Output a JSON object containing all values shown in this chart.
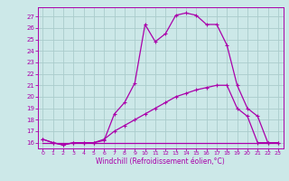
{
  "xlabel": "Windchill (Refroidissement éolien,°C)",
  "bg_color": "#cce8e8",
  "grid_color": "#aacccc",
  "line_color": "#aa00aa",
  "xlim": [
    -0.5,
    23.5
  ],
  "ylim": [
    15.5,
    27.8
  ],
  "yticks": [
    16,
    17,
    18,
    19,
    20,
    21,
    22,
    23,
    24,
    25,
    26,
    27
  ],
  "xticks": [
    0,
    1,
    2,
    3,
    4,
    5,
    6,
    7,
    8,
    9,
    10,
    11,
    12,
    13,
    14,
    15,
    16,
    17,
    18,
    19,
    20,
    21,
    22,
    23
  ],
  "line1_x": [
    0,
    1,
    2,
    3,
    4,
    5,
    6,
    7,
    8,
    9,
    10,
    11,
    12,
    13,
    14,
    15,
    16,
    17,
    18,
    19,
    20,
    21,
    22,
    23
  ],
  "line1_y": [
    16.3,
    16.0,
    15.8,
    16.0,
    16.0,
    16.0,
    16.2,
    18.5,
    19.5,
    21.2,
    26.3,
    24.8,
    25.5,
    27.1,
    27.3,
    27.1,
    26.3,
    26.3,
    24.5,
    21.0,
    19.0,
    18.3,
    16.0,
    16.0
  ],
  "line2_x": [
    0,
    1,
    2,
    3,
    4,
    5,
    6,
    7,
    8,
    9,
    10,
    11,
    12,
    13,
    14,
    15,
    16,
    17,
    18,
    19,
    20,
    21,
    22,
    23
  ],
  "line2_y": [
    16.3,
    16.0,
    15.8,
    16.0,
    16.0,
    16.0,
    16.3,
    17.0,
    17.5,
    18.0,
    18.5,
    19.0,
    19.5,
    20.0,
    20.3,
    20.6,
    20.8,
    21.0,
    21.0,
    19.0,
    18.3,
    16.0,
    16.0,
    16.0
  ],
  "line3_x": [
    0,
    23
  ],
  "line3_y": [
    16.0,
    16.0
  ],
  "marker": "+"
}
